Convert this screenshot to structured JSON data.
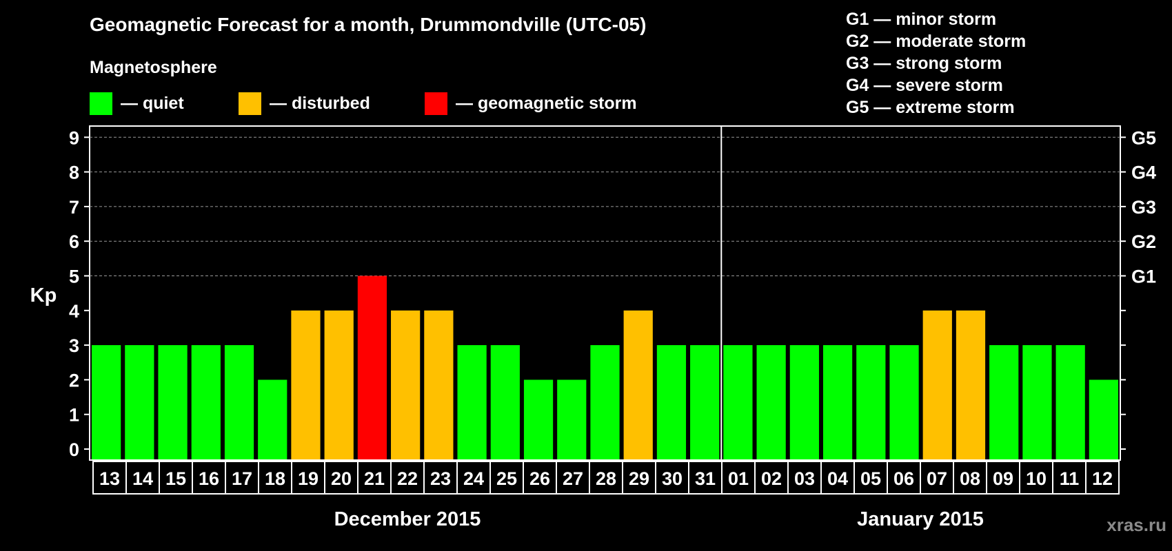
{
  "title": "Geomagnetic Forecast for a month, Drummondville (UTC-05)",
  "subtitle": "Magnetosphere",
  "legend": [
    {
      "label": "— quiet",
      "color": "#00ff00"
    },
    {
      "label": "— disturbed",
      "color": "#ffc000"
    },
    {
      "label": "— geomagnetic storm",
      "color": "#ff0000"
    }
  ],
  "storm_legend": [
    "G1 — minor storm",
    "G2 — moderate storm",
    "G3 — strong storm",
    "G4 — severe storm",
    "G5 — extreme storm"
  ],
  "watermark": "xras.ru",
  "chart_data": {
    "type": "bar",
    "ylabel": "Kp",
    "ylim": [
      0,
      9
    ],
    "yticks": [
      "0",
      "1",
      "2",
      "3",
      "4",
      "5",
      "6",
      "7",
      "8",
      "9"
    ],
    "right_axis_labels": {
      "5": "G1",
      "6": "G2",
      "7": "G3",
      "8": "G4",
      "9": "G5"
    },
    "grid": true,
    "categories": [
      "13",
      "14",
      "15",
      "16",
      "17",
      "18",
      "19",
      "20",
      "21",
      "22",
      "23",
      "24",
      "25",
      "26",
      "27",
      "28",
      "29",
      "30",
      "31",
      "01",
      "02",
      "03",
      "04",
      "05",
      "06",
      "07",
      "08",
      "09",
      "10",
      "11",
      "12"
    ],
    "values": [
      3,
      3,
      3,
      3,
      3,
      2,
      4,
      4,
      5,
      4,
      4,
      3,
      3,
      2,
      2,
      3,
      4,
      3,
      3,
      3,
      3,
      3,
      3,
      3,
      3,
      4,
      4,
      3,
      3,
      3,
      2
    ],
    "months": [
      {
        "label": "December 2015",
        "count": 19
      },
      {
        "label": "January 2015",
        "count": 12
      }
    ],
    "colors": {
      "quiet": "#00ff00",
      "disturbed": "#ffc000",
      "storm": "#ff0000"
    }
  }
}
